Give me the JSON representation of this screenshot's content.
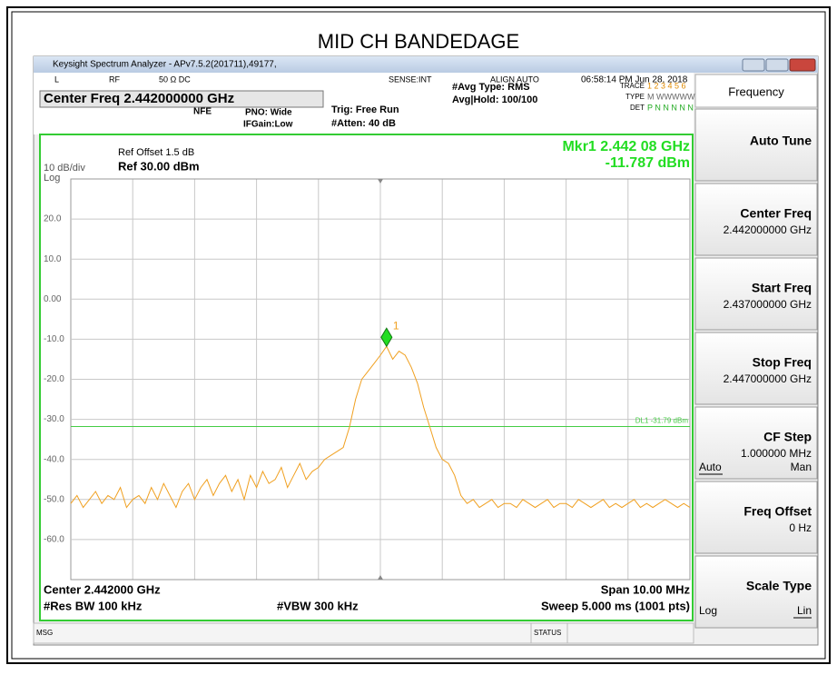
{
  "title": "MID CH BANDEDAGE",
  "window": {
    "title": "Keysight Spectrum Analyzer - APv7.5.2(201711),49177,"
  },
  "info": {
    "mode": "L",
    "rf": "RF",
    "impedance": "50 Ω  DC",
    "sense": "SENSE:INT",
    "align": "ALIGN AUTO",
    "time": "06:58:14 PM Jun 28, 2018",
    "center": "Center Freq 2.442000000 GHz",
    "nfe": "NFE",
    "pno": "PNO: Wide",
    "ifgain": "IFGain:Low",
    "trig": "Trig: Free Run",
    "atten": "#Atten: 40 dB",
    "avg_type": "#Avg Type: RMS",
    "avg_hold": "Avg|Hold: 100/100",
    "trace_label": "TRACE",
    "trace_values": "1 2 3 4 5 6",
    "type_label": "TYPE",
    "type_values": "M WWWWW",
    "det_label": "DET",
    "det_values": "P N N N N N"
  },
  "chart_data": {
    "type": "line",
    "ref_offset": "Ref Offset 1.5 dB",
    "scale": "10 dB/div",
    "ref_level": "Ref 30.00 dBm",
    "scale_type": "Log",
    "marker": {
      "label": "1",
      "value": -11.787,
      "readout": "Mkr1 2.442 08 GHz",
      "readout_value": "-11.787 dBm"
    },
    "display_line": {
      "value": -31.79,
      "label": "DL1 -31.79 dBm"
    },
    "ylim": [
      -70,
      30
    ],
    "yticks": [
      {
        "value": 20,
        "label": "20.0"
      },
      {
        "value": 10,
        "label": "10.0"
      },
      {
        "value": 0,
        "label": "0.00"
      },
      {
        "value": -10,
        "label": "-10.0"
      },
      {
        "value": -20,
        "label": "-20.0"
      },
      {
        "value": -30,
        "label": "-30.0"
      },
      {
        "value": -40,
        "label": "-40.0"
      },
      {
        "value": -50,
        "label": "-50.0"
      },
      {
        "value": -60,
        "label": "-60.0"
      }
    ],
    "grid": true,
    "color": "#f0a020",
    "values": [
      -51,
      -49,
      -52,
      -50,
      -48,
      -51,
      -49,
      -50,
      -47,
      -52,
      -50,
      -49,
      -51,
      -47,
      -50,
      -46,
      -49,
      -52,
      -48,
      -46,
      -50,
      -47,
      -45,
      -49,
      -46,
      -44,
      -48,
      -45,
      -50,
      -44,
      -47,
      -43,
      -46,
      -45,
      -42,
      -47,
      -44,
      -41,
      -45,
      -43,
      -42,
      -40,
      -39,
      -38,
      -37,
      -32,
      -25,
      -20,
      -18,
      -16,
      -14,
      -11.8,
      -15,
      -13,
      -14,
      -17,
      -21,
      -27,
      -32,
      -37,
      -40,
      -41,
      -44,
      -49,
      -51,
      -50,
      -52,
      -51,
      -50,
      -52,
      -51,
      -51,
      -52,
      -50,
      -51,
      -52,
      -51,
      -50,
      -52,
      -51,
      -51,
      -52,
      -50,
      -51,
      -52,
      -51,
      -50,
      -52,
      -51,
      -52,
      -51,
      -50,
      -52,
      -51,
      -52,
      -51,
      -50,
      -51,
      -52,
      -51,
      -52
    ]
  },
  "bottom": {
    "center": "Center 2.442000 GHz",
    "span": "Span 10.00 MHz",
    "rbw": "#Res BW 100 kHz",
    "vbw": "#VBW 300 kHz",
    "sweep": "Sweep  5.000 ms (1001 pts)"
  },
  "status": {
    "msg": "MSG",
    "status": "STATUS"
  },
  "panel": {
    "header": "Frequency",
    "buttons": [
      {
        "label": "Auto Tune"
      },
      {
        "label": "Center Freq",
        "value": "2.442000000 GHz"
      },
      {
        "label": "Start Freq",
        "value": "2.437000000 GHz"
      },
      {
        "label": "Stop Freq",
        "value": "2.447000000 GHz"
      },
      {
        "label": "CF Step",
        "value": "1.000000 MHz",
        "left": "Auto",
        "right": "Man"
      },
      {
        "label": "Freq Offset",
        "value": "0 Hz"
      },
      {
        "label": "Scale Type",
        "left": "Log",
        "right": "Lin"
      }
    ]
  }
}
